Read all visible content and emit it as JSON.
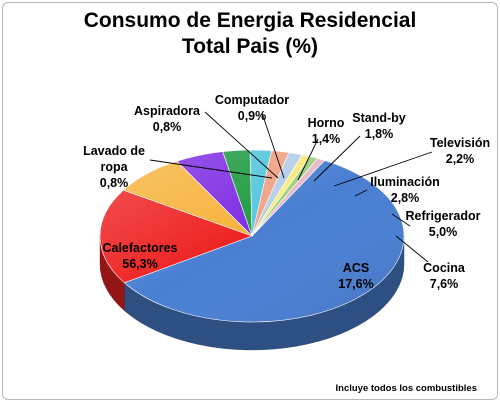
{
  "chart_data": {
    "type": "pie",
    "title": "Consumo de Energia Residencial",
    "subtitle": "Total Pais (%)",
    "note": "Incluye todos los combustibles",
    "slices": [
      {
        "name": "Calefactores",
        "value_label": "56,3%",
        "value": 56.3,
        "color": "#4a7fd2"
      },
      {
        "name": "ACS",
        "value_label": "17,6%",
        "value": 17.6,
        "color": "#ee2222"
      },
      {
        "name": "Cocina",
        "value_label": "7,6%",
        "value": 7.6,
        "color": "#f7b23b"
      },
      {
        "name": "Refrigerador",
        "value_label": "5,0%",
        "value": 5.0,
        "color": "#7e2ce3"
      },
      {
        "name": "Iluminación",
        "value_label": "2,8%",
        "value": 2.8,
        "color": "#1f9b42"
      },
      {
        "name": "Televisión",
        "value_label": "2,2%",
        "value": 2.2,
        "color": "#56c6dd"
      },
      {
        "name": "Stand-by",
        "value_label": "1,8%",
        "value": 1.8,
        "color": "#f0a283"
      },
      {
        "name": "Horno",
        "value_label": "1,4%",
        "value": 1.4,
        "color": "#b6cde9"
      },
      {
        "name": "Computador",
        "value_label": "0,9%",
        "value": 0.9,
        "color": "#f7ec7a"
      },
      {
        "name": "Aspiradora",
        "value_label": "0,8%",
        "value": 0.8,
        "color": "#9bd17f"
      },
      {
        "name": "Lavado de ropa",
        "value_label": "0,8%",
        "value": 0.8,
        "color": "#e9b8c8"
      }
    ]
  }
}
